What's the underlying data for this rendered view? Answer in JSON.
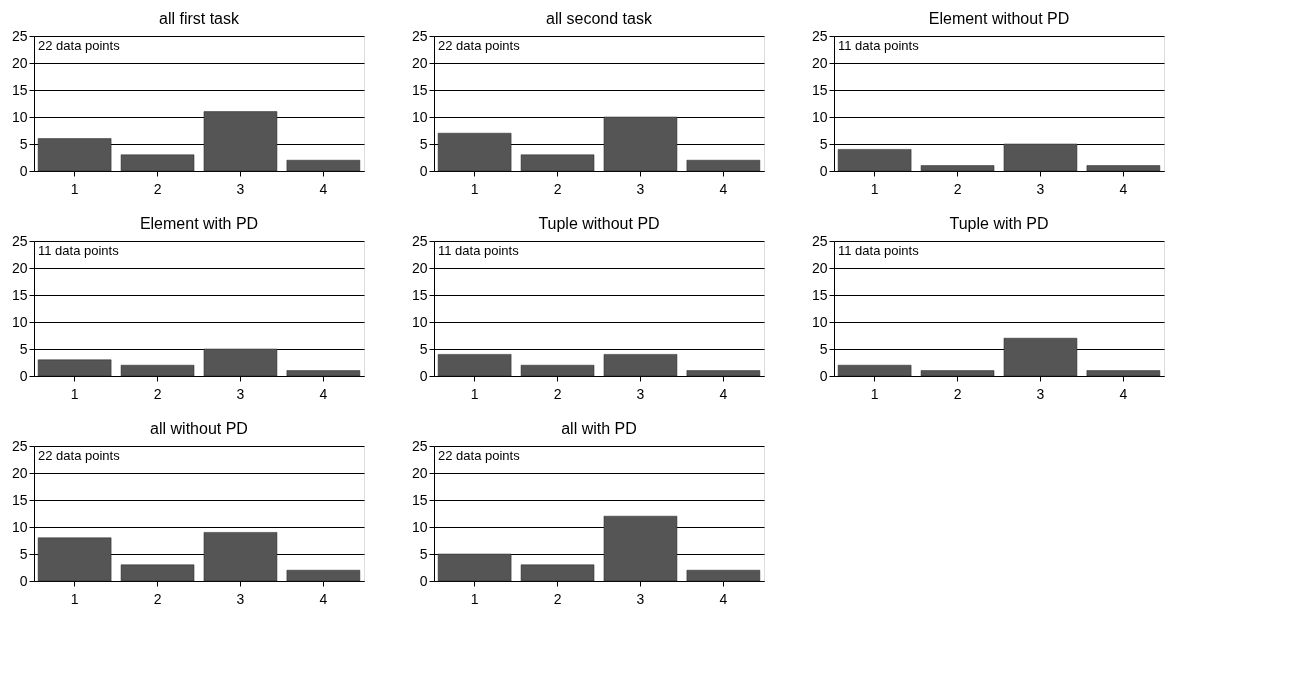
{
  "chart_data": [
    {
      "type": "bar",
      "title": "all first task",
      "categories": [
        "1",
        "2",
        "3",
        "4"
      ],
      "values": [
        6,
        3,
        11,
        2
      ],
      "color": "#555555",
      "ylim": [
        0,
        25
      ],
      "yticks": [
        0,
        5,
        10,
        15,
        20,
        25
      ],
      "grid": "y",
      "annotations": [
        "22 data points"
      ]
    },
    {
      "type": "bar",
      "title": "all second task",
      "categories": [
        "1",
        "2",
        "3",
        "4"
      ],
      "values": [
        7,
        3,
        10,
        2
      ],
      "color": "#555555",
      "ylim": [
        0,
        25
      ],
      "yticks": [
        0,
        5,
        10,
        15,
        20,
        25
      ],
      "grid": "y",
      "annotations": [
        "22 data points"
      ]
    },
    {
      "type": "bar",
      "title": "Element without PD",
      "categories": [
        "1",
        "2",
        "3",
        "4"
      ],
      "values": [
        4,
        1,
        5,
        1
      ],
      "color": "#555555",
      "ylim": [
        0,
        25
      ],
      "yticks": [
        0,
        5,
        10,
        15,
        20,
        25
      ],
      "grid": "y",
      "annotations": [
        "11 data points"
      ]
    },
    {
      "type": "bar",
      "title": "Element with PD",
      "categories": [
        "1",
        "2",
        "3",
        "4"
      ],
      "values": [
        3,
        2,
        5,
        1
      ],
      "color": "#555555",
      "ylim": [
        0,
        25
      ],
      "yticks": [
        0,
        5,
        10,
        15,
        20,
        25
      ],
      "grid": "y",
      "annotations": [
        "11 data points"
      ]
    },
    {
      "type": "bar",
      "title": "Tuple without PD",
      "categories": [
        "1",
        "2",
        "3",
        "4"
      ],
      "values": [
        4,
        2,
        4,
        1
      ],
      "color": "#555555",
      "ylim": [
        0,
        25
      ],
      "yticks": [
        0,
        5,
        10,
        15,
        20,
        25
      ],
      "grid": "y",
      "annotations": [
        "11 data points"
      ]
    },
    {
      "type": "bar",
      "title": "Tuple with PD",
      "categories": [
        "1",
        "2",
        "3",
        "4"
      ],
      "values": [
        2,
        1,
        7,
        1
      ],
      "color": "#555555",
      "ylim": [
        0,
        25
      ],
      "yticks": [
        0,
        5,
        10,
        15,
        20,
        25
      ],
      "grid": "y",
      "annotations": [
        "11 data points"
      ]
    },
    {
      "type": "bar",
      "title": "all without PD",
      "categories": [
        "1",
        "2",
        "3",
        "4"
      ],
      "values": [
        8,
        3,
        9,
        2
      ],
      "color": "#555555",
      "ylim": [
        0,
        25
      ],
      "yticks": [
        0,
        5,
        10,
        15,
        20,
        25
      ],
      "grid": "y",
      "annotations": [
        "22 data points"
      ]
    },
    {
      "type": "bar",
      "title": "all with PD",
      "categories": [
        "1",
        "2",
        "3",
        "4"
      ],
      "values": [
        5,
        3,
        12,
        2
      ],
      "color": "#555555",
      "ylim": [
        0,
        25
      ],
      "yticks": [
        0,
        5,
        10,
        15,
        20,
        25
      ],
      "grid": "y",
      "annotations": [
        "22 data points"
      ]
    }
  ]
}
